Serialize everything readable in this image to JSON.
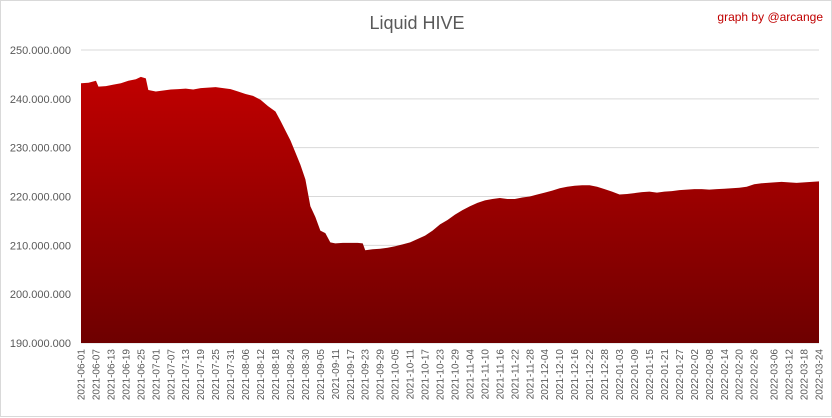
{
  "chart_data": {
    "type": "area",
    "title": "Liquid HIVE",
    "annotation": "graph by @arcange",
    "xlabel": "",
    "ylabel": "",
    "ylim": [
      190000000,
      250000000
    ],
    "yticks": [
      {
        "value": 190000000,
        "label": "190.000.000"
      },
      {
        "value": 200000000,
        "label": "200.000.000"
      },
      {
        "value": 210000000,
        "label": "210.000.000"
      },
      {
        "value": 220000000,
        "label": "220.000.000"
      },
      {
        "value": 230000000,
        "label": "230.000.000"
      },
      {
        "value": 240000000,
        "label": "240.000.000"
      },
      {
        "value": 250000000,
        "label": "250.000.000"
      }
    ],
    "xlim": [
      "2021-06-01",
      "2022-03-24"
    ],
    "xticks": [
      "2021-06-01",
      "2021-06-07",
      "2021-06-13",
      "2021-06-19",
      "2021-06-25",
      "2021-07-01",
      "2021-07-07",
      "2021-07-13",
      "2021-07-19",
      "2021-07-25",
      "2021-07-31",
      "2021-08-06",
      "2021-08-12",
      "2021-08-18",
      "2021-08-24",
      "2021-08-30",
      "2021-09-05",
      "2021-09-11",
      "2021-09-17",
      "2021-09-23",
      "2021-09-29",
      "2021-10-05",
      "2021-10-11",
      "2021-10-17",
      "2021-10-23",
      "2021-10-29",
      "2021-11-04",
      "2021-11-10",
      "2021-11-16",
      "2021-11-22",
      "2021-11-28",
      "2021-12-04",
      "2021-12-10",
      "2021-12-16",
      "2021-12-22",
      "2021-12-28",
      "2022-01-03",
      "2022-01-09",
      "2022-01-15",
      "2022-01-21",
      "2022-01-27",
      "2022-02-02",
      "2022-02-08",
      "2022-02-14",
      "2022-02-20",
      "2022-02-26",
      "2022-03-06",
      "2022-03-12",
      "2022-03-18",
      "2022-03-24"
    ],
    "grid": true,
    "legend": "none",
    "colors": {
      "area_top": "#c00000",
      "area_bottom": "#6e0000",
      "grid": "#d9d9d9",
      "annotation": "#c00000"
    },
    "series": [
      {
        "x": [
          "2021-06-01",
          "2021-06-04",
          "2021-06-07",
          "2021-06-08",
          "2021-06-11",
          "2021-06-14",
          "2021-06-17",
          "2021-06-20",
          "2021-06-23",
          "2021-06-25",
          "2021-06-27",
          "2021-06-28",
          "2021-07-01",
          "2021-07-04",
          "2021-07-07",
          "2021-07-10",
          "2021-07-13",
          "2021-07-16",
          "2021-07-19",
          "2021-07-22",
          "2021-07-25",
          "2021-07-28",
          "2021-07-31",
          "2021-08-03",
          "2021-08-06",
          "2021-08-09",
          "2021-08-12",
          "2021-08-15",
          "2021-08-18",
          "2021-08-20",
          "2021-08-22",
          "2021-08-24",
          "2021-08-26",
          "2021-08-28",
          "2021-08-30",
          "2021-09-01",
          "2021-09-03",
          "2021-09-05",
          "2021-09-07",
          "2021-09-09",
          "2021-09-11",
          "2021-09-14",
          "2021-09-17",
          "2021-09-20",
          "2021-09-22",
          "2021-09-23",
          "2021-09-26",
          "2021-09-29",
          "2021-10-02",
          "2021-10-05",
          "2021-10-08",
          "2021-10-11",
          "2021-10-14",
          "2021-10-17",
          "2021-10-20",
          "2021-10-23",
          "2021-10-26",
          "2021-10-29",
          "2021-11-01",
          "2021-11-04",
          "2021-11-07",
          "2021-11-10",
          "2021-11-13",
          "2021-11-16",
          "2021-11-19",
          "2021-11-22",
          "2021-11-25",
          "2021-11-28",
          "2021-12-01",
          "2021-12-04",
          "2021-12-07",
          "2021-12-10",
          "2021-12-13",
          "2021-12-16",
          "2021-12-19",
          "2021-12-22",
          "2021-12-25",
          "2021-12-28",
          "2021-12-31",
          "2022-01-03",
          "2022-01-06",
          "2022-01-09",
          "2022-01-12",
          "2022-01-15",
          "2022-01-18",
          "2022-01-21",
          "2022-01-24",
          "2022-01-27",
          "2022-01-30",
          "2022-02-02",
          "2022-02-05",
          "2022-02-08",
          "2022-02-11",
          "2022-02-14",
          "2022-02-17",
          "2022-02-20",
          "2022-02-23",
          "2022-02-26",
          "2022-03-01",
          "2022-03-06",
          "2022-03-09",
          "2022-03-12",
          "2022-03-15",
          "2022-03-18",
          "2022-03-21",
          "2022-03-24"
        ],
        "values": [
          243200000,
          243300000,
          243700000,
          242500000,
          242600000,
          242900000,
          243200000,
          243700000,
          244000000,
          244500000,
          244200000,
          241800000,
          241500000,
          241700000,
          241900000,
          242000000,
          242100000,
          241900000,
          242200000,
          242300000,
          242400000,
          242200000,
          242000000,
          241500000,
          241000000,
          240600000,
          239800000,
          238500000,
          237400000,
          235500000,
          233500000,
          231500000,
          229000000,
          226500000,
          223500000,
          218000000,
          215800000,
          213000000,
          212500000,
          210600000,
          210400000,
          210500000,
          210500000,
          210500000,
          210400000,
          209000000,
          209200000,
          209300000,
          209500000,
          209800000,
          210200000,
          210600000,
          211300000,
          212000000,
          213000000,
          214300000,
          215200000,
          216300000,
          217200000,
          218000000,
          218700000,
          219200000,
          219500000,
          219700000,
          219500000,
          219500000,
          219800000,
          220000000,
          220400000,
          220800000,
          221200000,
          221700000,
          222000000,
          222200000,
          222300000,
          222300000,
          222000000,
          221500000,
          221000000,
          220400000,
          220500000,
          220700000,
          220900000,
          221000000,
          220800000,
          221000000,
          221100000,
          221300000,
          221400000,
          221500000,
          221500000,
          221400000,
          221500000,
          221600000,
          221700000,
          221800000,
          222000000,
          222500000,
          222700000,
          222900000,
          223000000,
          222900000,
          222800000,
          222900000,
          223000000,
          223100000
        ]
      }
    ]
  }
}
